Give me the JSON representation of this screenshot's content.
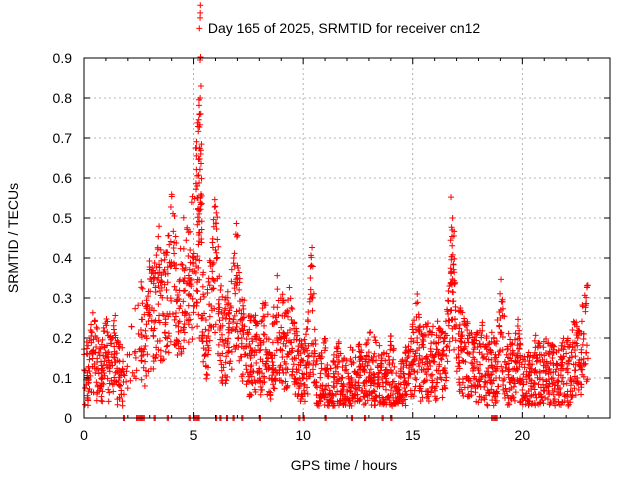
{
  "chart_data": {
    "type": "scatter",
    "title": "Day 165 of 2025, SRMTID for receiver cn12",
    "xlabel": "GPS time / hours",
    "ylabel": "SRMTID / TECUs",
    "xlim": [
      0,
      24
    ],
    "ylim": [
      0,
      0.9
    ],
    "xticks": [
      "0",
      "5",
      "10",
      "15",
      "20"
    ],
    "yticks": [
      "0",
      "0.1",
      "0.2",
      "0.3",
      "0.4",
      "0.5",
      "0.6",
      "0.7",
      "0.8",
      "0.9"
    ],
    "grid": true,
    "marker": "+",
    "colors": {
      "series": "#ff0000",
      "grid": "#a0a0a0",
      "axes": "#000000"
    },
    "series": [
      {
        "name": "SRMTID",
        "x": [
          0.0,
          0.2,
          0.4,
          0.6,
          0.8,
          1.0,
          1.2,
          1.4,
          1.6,
          1.8,
          2.6,
          2.8,
          3.0,
          3.2,
          3.4,
          3.6,
          3.8,
          4.0,
          4.2,
          4.4,
          4.6,
          4.8,
          5.0,
          5.2,
          5.3,
          5.4,
          5.6,
          5.8,
          6.0,
          6.2,
          6.4,
          6.6,
          6.8,
          7.0,
          7.2,
          7.4,
          7.6,
          7.8,
          8.0,
          8.2,
          8.4,
          8.6,
          8.8,
          9.0,
          9.2,
          9.4,
          9.6,
          9.8,
          10.0,
          10.2,
          10.4,
          10.6,
          10.8,
          11.0,
          11.2,
          11.4,
          11.6,
          11.8,
          12.0,
          12.2,
          12.4,
          12.6,
          12.8,
          13.0,
          13.2,
          13.4,
          13.6,
          13.8,
          14.0,
          14.2,
          14.4,
          14.6,
          14.8,
          15.0,
          15.2,
          15.4,
          15.6,
          15.8,
          16.0,
          16.2,
          16.4,
          16.6,
          16.8,
          17.0,
          17.2,
          17.4,
          17.6,
          17.8,
          18.0,
          18.2,
          18.4,
          18.6,
          18.8,
          19.0,
          19.2,
          19.4,
          19.6,
          19.8,
          20.0,
          20.2,
          20.4,
          20.6,
          20.8,
          21.0,
          21.2,
          21.4,
          21.6,
          21.8,
          22.0,
          22.2,
          22.4,
          22.6,
          22.8
        ],
        "y": [
          0.12,
          0.1,
          0.16,
          0.14,
          0.12,
          0.15,
          0.13,
          0.16,
          0.11,
          0.09,
          0.22,
          0.18,
          0.27,
          0.24,
          0.33,
          0.26,
          0.3,
          0.38,
          0.32,
          0.28,
          0.35,
          0.31,
          0.4,
          0.55,
          0.8,
          0.25,
          0.2,
          0.28,
          0.42,
          0.22,
          0.18,
          0.26,
          0.24,
          0.35,
          0.2,
          0.18,
          0.15,
          0.17,
          0.12,
          0.19,
          0.16,
          0.14,
          0.24,
          0.2,
          0.18,
          0.22,
          0.15,
          0.12,
          0.1,
          0.14,
          0.3,
          0.09,
          0.08,
          0.12,
          0.06,
          0.09,
          0.11,
          0.08,
          0.07,
          0.1,
          0.09,
          0.12,
          0.08,
          0.14,
          0.11,
          0.13,
          0.1,
          0.09,
          0.12,
          0.08,
          0.07,
          0.11,
          0.1,
          0.14,
          0.2,
          0.12,
          0.15,
          0.13,
          0.14,
          0.16,
          0.12,
          0.18,
          0.47,
          0.15,
          0.17,
          0.14,
          0.16,
          0.13,
          0.12,
          0.15,
          0.11,
          0.13,
          0.1,
          0.25,
          0.14,
          0.12,
          0.1,
          0.15,
          0.07,
          0.09,
          0.08,
          0.12,
          0.1,
          0.14,
          0.11,
          0.1,
          0.09,
          0.13,
          0.12,
          0.1,
          0.17,
          0.13,
          0.21
        ],
        "zero_points_x": [
          1.8,
          2.4,
          2.5,
          2.6,
          2.7,
          3.2,
          3.8,
          4.8,
          5.0,
          5.1,
          5.2,
          6.0,
          6.2,
          6.5,
          6.8,
          7.2,
          8.0,
          9.8,
          10.0,
          11.0,
          12.2,
          12.8,
          13.6,
          14.0,
          18.6,
          18.7,
          18.8
        ]
      }
    ]
  }
}
